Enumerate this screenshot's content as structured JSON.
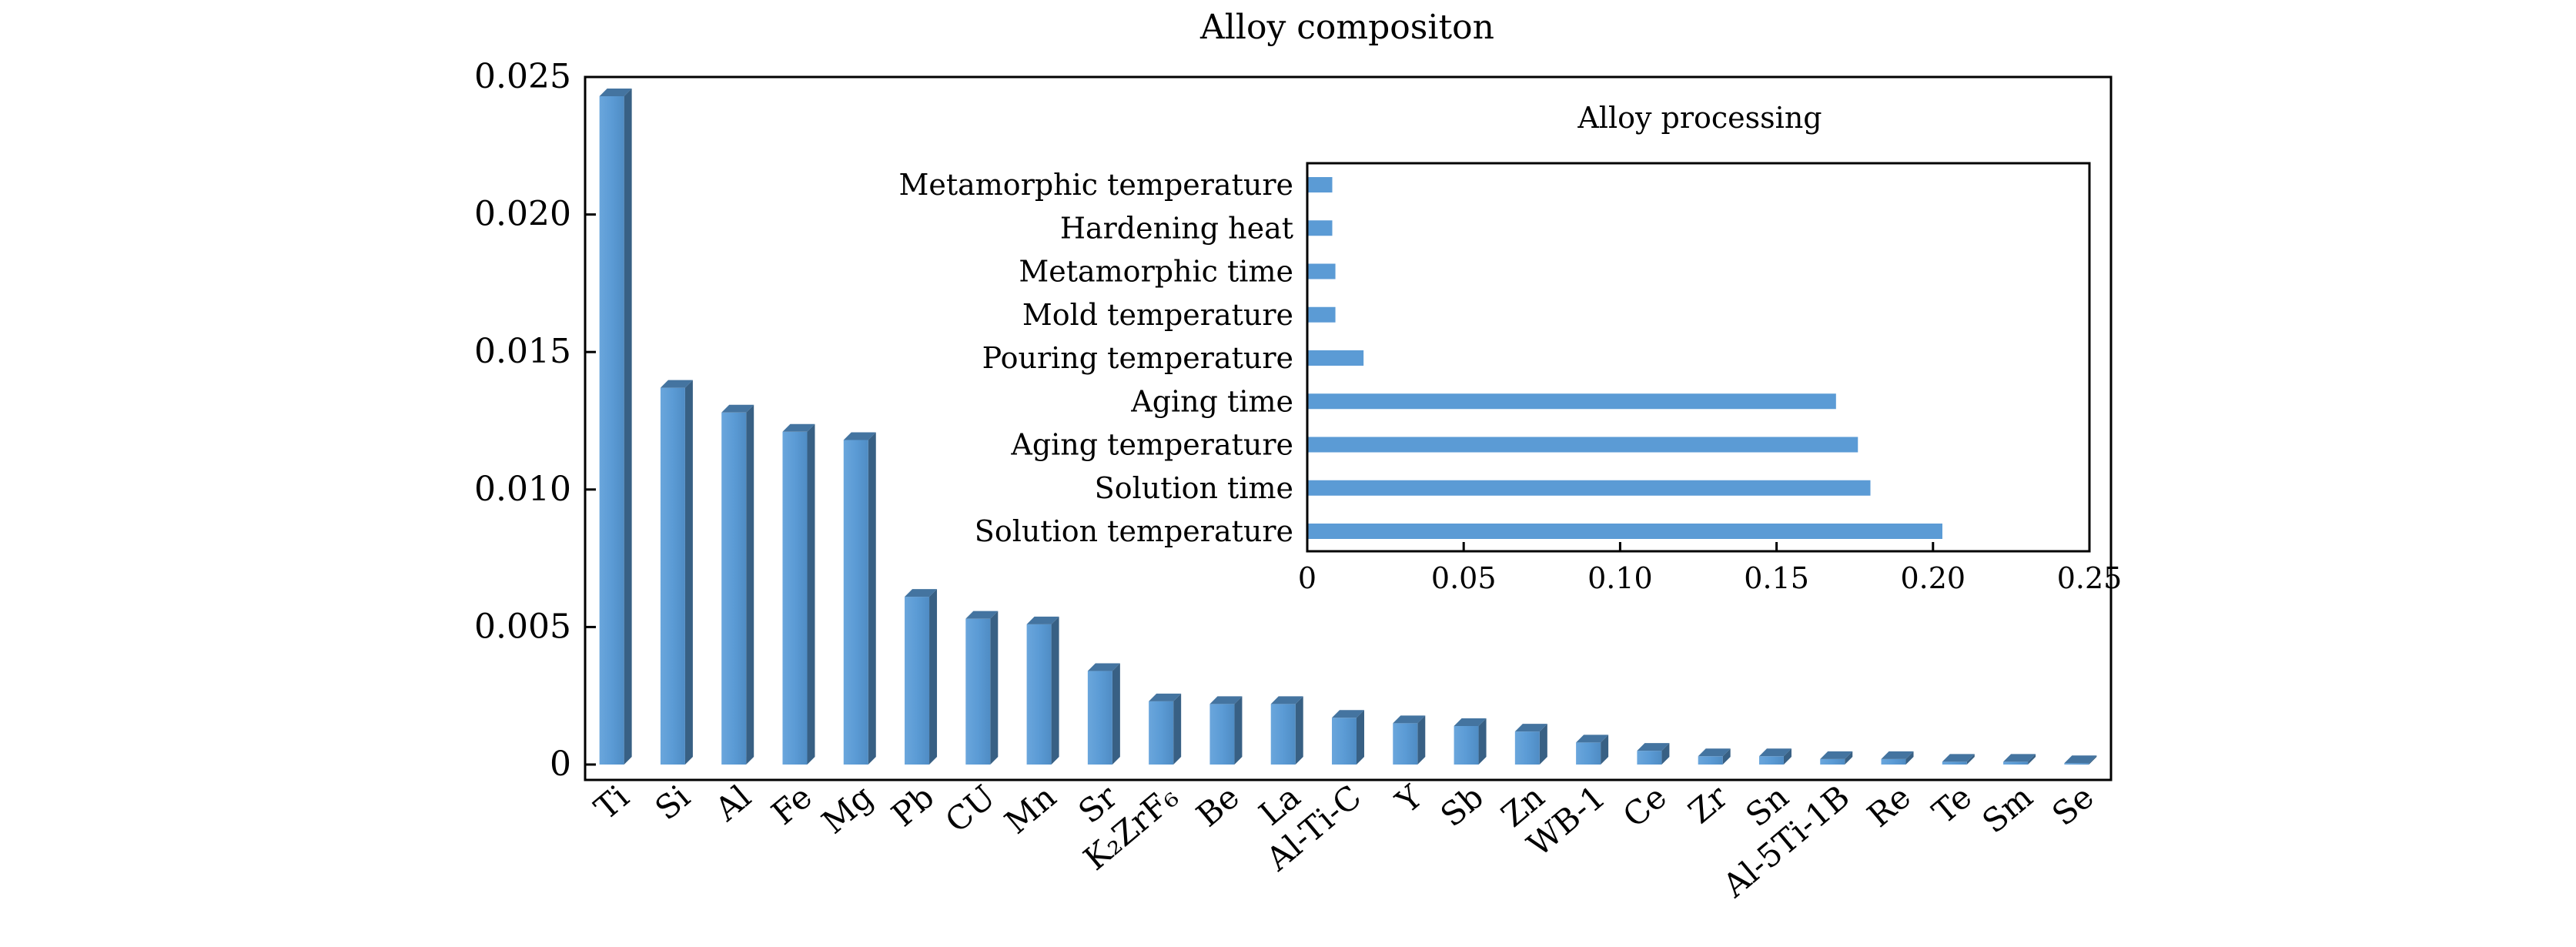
{
  "chart_data": [
    {
      "type": "bar",
      "title": "Alloy compositon",
      "xlabel": "",
      "ylabel": "",
      "categories": [
        "Ti",
        "Si",
        "Al",
        "Fe",
        "Mg",
        "Pb",
        "CU",
        "Mn",
        "Sr",
        "K₂ZrF₆",
        "Be",
        "La",
        "Al-Ti-C",
        "Y",
        "Sb",
        "Zn",
        "WB-1",
        "Ce",
        "Zr",
        "Sn",
        "Al-5Ti-1B",
        "Re",
        "Te",
        "Sm",
        "Se"
      ],
      "values": [
        0.0243,
        0.0137,
        0.0128,
        0.0121,
        0.0118,
        0.0061,
        0.0053,
        0.0051,
        0.0034,
        0.0023,
        0.0022,
        0.0022,
        0.0017,
        0.0015,
        0.0014,
        0.0012,
        0.0008,
        0.0005,
        0.0003,
        0.0003,
        0.0002,
        0.0002,
        0.0001,
        0.0001,
        5e-05
      ],
      "ylim": [
        0,
        0.025
      ],
      "yticks": [
        0,
        0.005,
        0.01,
        0.015,
        0.02,
        0.025
      ],
      "ytick_labels": [
        "0",
        "0.005",
        "0.010",
        "0.015",
        "0.020",
        "0.025"
      ],
      "bar_color": "#5b9bd5",
      "grid": false
    },
    {
      "type": "bar",
      "orientation": "horizontal",
      "title": "Alloy processing",
      "xlabel": "",
      "ylabel": "",
      "categories": [
        "Solution temperature",
        "Solution time",
        "Aging temperature",
        "Aging time",
        "Pouring temperature",
        "Mold temperature",
        "Metamorphic time",
        "Hardening heat",
        "Metamorphic temperature"
      ],
      "values": [
        0.203,
        0.18,
        0.176,
        0.169,
        0.018,
        0.009,
        0.009,
        0.008,
        0.008
      ],
      "xlim": [
        0,
        0.25
      ],
      "xticks": [
        0,
        0.05,
        0.1,
        0.15,
        0.2,
        0.25
      ],
      "xtick_labels": [
        "0",
        "0.05",
        "0.10",
        "0.15",
        "0.20",
        "0.25"
      ],
      "bar_color": "#5b9bd5",
      "grid": false
    }
  ]
}
